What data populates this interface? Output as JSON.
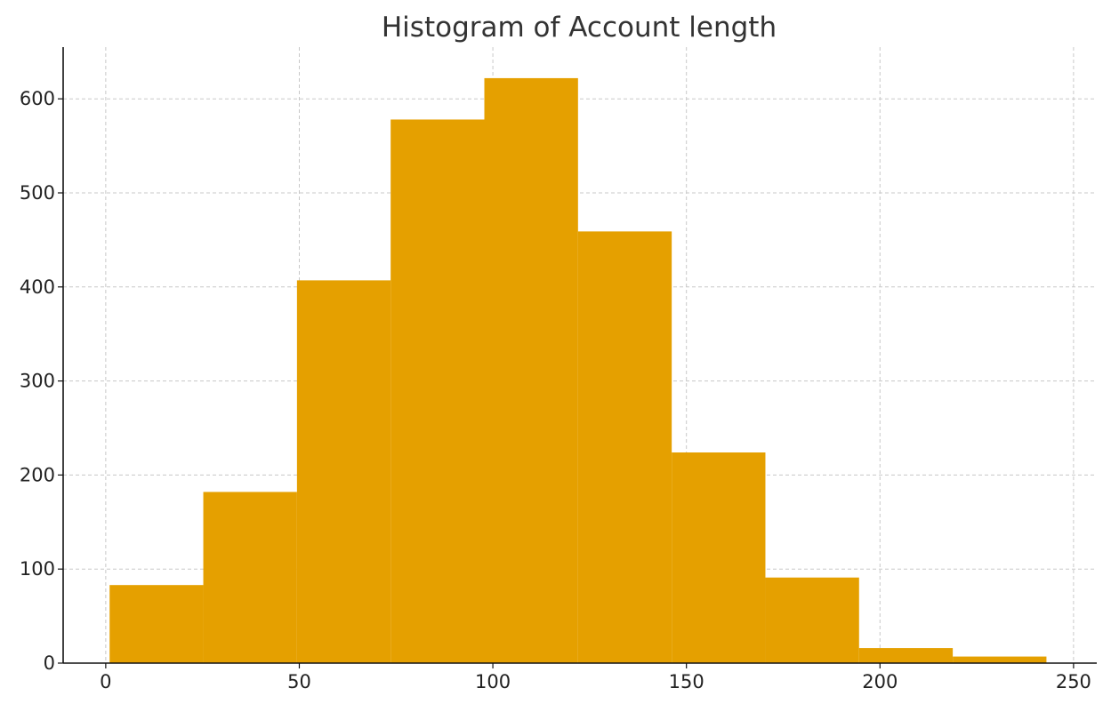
{
  "chart_data": {
    "type": "bar",
    "title": "Histogram of Account length",
    "xlabel": "",
    "ylabel": "",
    "bin_edges": [
      1,
      25.2,
      49.4,
      73.6,
      97.8,
      122,
      146.2,
      170.4,
      194.6,
      218.8,
      243
    ],
    "values": [
      83,
      182,
      407,
      578,
      622,
      459,
      224,
      91,
      16,
      7
    ],
    "xlim": [
      -11,
      256
    ],
    "ylim": [
      0,
      655
    ],
    "xticks": [
      0,
      50,
      100,
      150,
      200,
      250
    ],
    "yticks": [
      0,
      100,
      200,
      300,
      400,
      500,
      600
    ],
    "grid": true,
    "bar_color": "#E5A000",
    "grid_color": "#c8c8c8"
  }
}
